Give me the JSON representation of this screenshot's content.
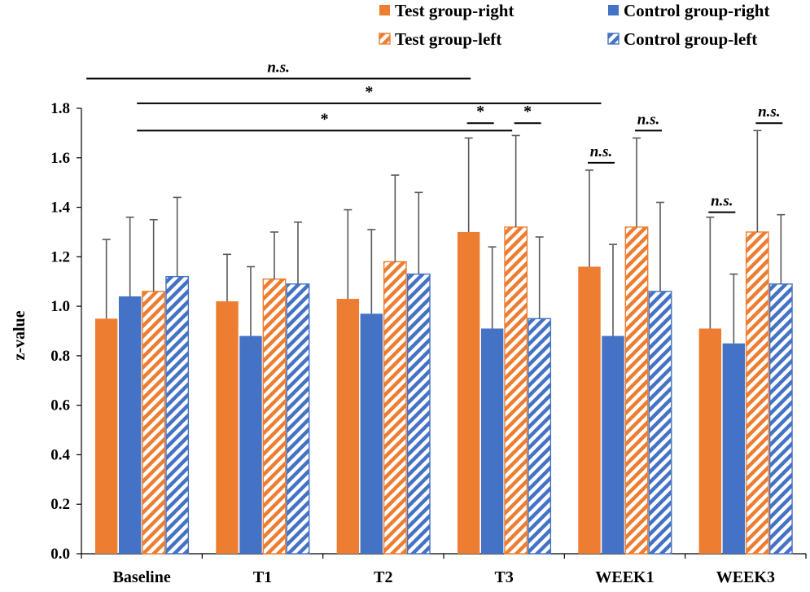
{
  "chart_data": {
    "type": "bar",
    "title": "",
    "xlabel": "",
    "ylabel": "z-value",
    "ylim": [
      0,
      1.8
    ],
    "ytick_step": 0.2,
    "ytick_labels": [
      "0.0",
      "0.2",
      "0.4",
      "0.6",
      "0.8",
      "1.0",
      "1.2",
      "1.4",
      "1.6",
      "1.8"
    ],
    "grid": false,
    "legend_position": "top-right",
    "categories": [
      "Baseline",
      "T1",
      "T2",
      "T3",
      "WEEK1",
      "WEEK3"
    ],
    "series": [
      {
        "name": "Test group-right",
        "color": "#ED7D31",
        "pattern": "solid",
        "values": [
          0.95,
          1.02,
          1.03,
          1.3,
          1.16,
          0.91
        ],
        "errors": [
          0.32,
          0.19,
          0.36,
          0.38,
          0.39,
          0.45
        ]
      },
      {
        "name": "Control group-right",
        "color": "#4472C4",
        "pattern": "solid",
        "values": [
          1.04,
          0.88,
          0.97,
          0.91,
          0.88,
          0.85
        ],
        "errors": [
          0.32,
          0.28,
          0.34,
          0.33,
          0.37,
          0.28
        ]
      },
      {
        "name": "Test group-left",
        "color": "#ED7D31",
        "pattern": "hatched",
        "values": [
          1.06,
          1.11,
          1.18,
          1.32,
          1.32,
          1.3
        ],
        "errors": [
          0.29,
          0.19,
          0.35,
          0.37,
          0.36,
          0.41
        ]
      },
      {
        "name": "Control group-left",
        "color": "#4472C4",
        "pattern": "hatched",
        "values": [
          1.12,
          1.09,
          1.13,
          0.95,
          1.06,
          1.09
        ],
        "errors": [
          0.32,
          0.25,
          0.33,
          0.33,
          0.36,
          0.28
        ]
      }
    ],
    "annotations": [
      {
        "text": "n.s.",
        "kind": "bracket",
        "from": "Baseline",
        "to": "T3",
        "level": 1.92
      },
      {
        "text": "*",
        "kind": "bracket",
        "from": "Baseline",
        "to": "WEEK1",
        "level": 1.82
      },
      {
        "text": "*",
        "kind": "bracket",
        "from": "Baseline",
        "to": "T3",
        "level": 1.71
      },
      {
        "text": "*",
        "kind": "pair",
        "category": "T3",
        "bars": [
          "Test group-right",
          "Control group-right"
        ],
        "level": 1.74
      },
      {
        "text": "*",
        "kind": "pair",
        "category": "T3",
        "bars": [
          "Test group-left",
          "Control group-left"
        ],
        "level": 1.74
      },
      {
        "text": "n.s.",
        "kind": "pair",
        "category": "WEEK1",
        "bars": [
          "Test group-right",
          "Control group-right"
        ],
        "level": 1.58
      },
      {
        "text": "n.s.",
        "kind": "pair",
        "category": "WEEK1",
        "bars": [
          "Test group-left",
          "Control group-left"
        ],
        "level": 1.71
      },
      {
        "text": "n.s.",
        "kind": "pair",
        "category": "WEEK3",
        "bars": [
          "Test group-right",
          "Control group-right"
        ],
        "level": 1.38
      },
      {
        "text": "n.s.",
        "kind": "pair",
        "category": "WEEK3",
        "bars": [
          "Test group-left",
          "Control group-left"
        ],
        "level": 1.74
      }
    ]
  }
}
